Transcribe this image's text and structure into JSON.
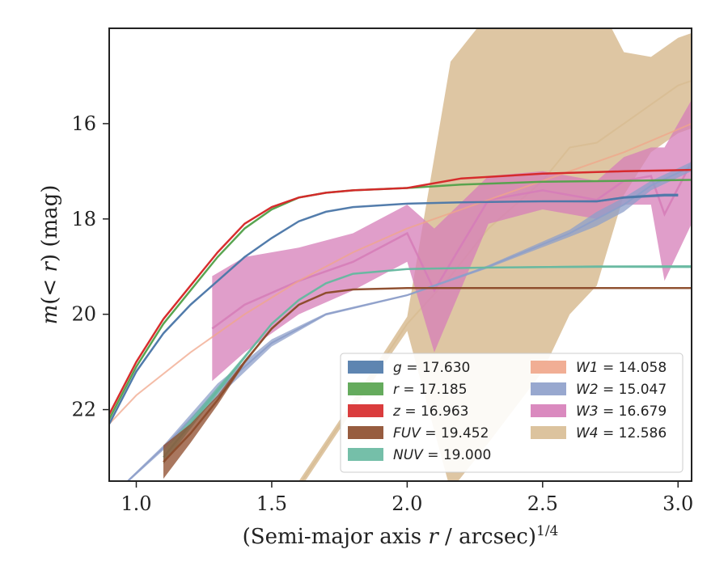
{
  "chart_data": {
    "type": "line",
    "title": "",
    "xlabel_main": "(Semi-major axis ",
    "xlabel_var": "r",
    "xlabel_tail": " / arcsec)",
    "xlabel_sup": "1/4",
    "ylabel_main": "m",
    "ylabel_paren": "(< ",
    "ylabel_var": "r",
    "ylabel_tail": ") (mag)",
    "xlim": [
      0.9,
      3.05
    ],
    "ylim": [
      23.5,
      14.0
    ],
    "y_inverted": true,
    "x_ticks": [
      1.0,
      1.5,
      2.0,
      2.5,
      3.0
    ],
    "x_tick_labels": [
      "1.0",
      "1.5",
      "2.0",
      "2.5",
      "3.0"
    ],
    "y_ticks": [
      16,
      18,
      20,
      22
    ],
    "y_tick_labels": [
      "16",
      "18",
      "20",
      "22"
    ],
    "grid": false,
    "legend_placement": "lower-right",
    "series": [
      {
        "name": "g",
        "legend_label": "g = 17.630",
        "color": "#4c78a8",
        "kind": "band",
        "x": [
          0.9,
          1.0,
          1.1,
          1.2,
          1.3,
          1.4,
          1.5,
          1.6,
          1.7,
          1.8,
          2.0,
          2.2,
          2.5,
          2.7,
          2.8,
          2.95,
          3.0
        ],
        "y": [
          22.3,
          21.2,
          20.4,
          19.8,
          19.3,
          18.8,
          18.4,
          18.05,
          17.85,
          17.75,
          17.68,
          17.65,
          17.63,
          17.63,
          17.55,
          17.5,
          17.5
        ],
        "width": [
          0.08,
          0.07,
          0.06,
          0.05,
          0.04,
          0.04,
          0.04,
          0.03,
          0.03,
          0.03,
          0.03,
          0.03,
          0.03,
          0.04,
          0.05,
          0.06,
          0.06
        ]
      },
      {
        "name": "r",
        "legend_label": "r = 17.185",
        "color": "#54a24b",
        "kind": "band",
        "x": [
          0.9,
          1.0,
          1.1,
          1.2,
          1.3,
          1.4,
          1.5,
          1.6,
          1.7,
          1.8,
          2.0,
          2.2,
          2.5,
          2.8,
          3.05
        ],
        "y": [
          22.2,
          21.1,
          20.2,
          19.5,
          18.8,
          18.2,
          17.8,
          17.55,
          17.45,
          17.4,
          17.35,
          17.28,
          17.22,
          17.2,
          17.18
        ],
        "width": [
          0.08,
          0.07,
          0.06,
          0.05,
          0.04,
          0.04,
          0.04,
          0.03,
          0.03,
          0.03,
          0.03,
          0.03,
          0.03,
          0.03,
          0.03
        ]
      },
      {
        "name": "z",
        "legend_label": "z = 16.963",
        "color": "#d62728",
        "kind": "band",
        "x": [
          0.9,
          1.0,
          1.1,
          1.2,
          1.3,
          1.4,
          1.5,
          1.6,
          1.7,
          1.8,
          2.0,
          2.2,
          2.5,
          2.8,
          3.05
        ],
        "y": [
          22.1,
          21.0,
          20.1,
          19.4,
          18.7,
          18.1,
          17.75,
          17.55,
          17.45,
          17.4,
          17.35,
          17.15,
          17.05,
          17.0,
          16.97
        ],
        "width": [
          0.08,
          0.07,
          0.06,
          0.05,
          0.04,
          0.04,
          0.04,
          0.03,
          0.03,
          0.03,
          0.03,
          0.03,
          0.03,
          0.03,
          0.03
        ]
      },
      {
        "name": "FUV",
        "legend_label": "FUV = 19.452",
        "color": "#8c4a2a",
        "kind": "band",
        "x": [
          1.1,
          1.2,
          1.3,
          1.4,
          1.5,
          1.6,
          1.7,
          1.8,
          2.0,
          2.3,
          2.6,
          3.05
        ],
        "y": [
          23.1,
          22.5,
          21.8,
          21.0,
          20.3,
          19.8,
          19.55,
          19.48,
          19.45,
          19.45,
          19.45,
          19.45
        ],
        "width": [
          0.7,
          0.4,
          0.2,
          0.08,
          0.05,
          0.04,
          0.03,
          0.03,
          0.03,
          0.03,
          0.03,
          0.03
        ]
      },
      {
        "name": "NUV",
        "legend_label": "NUV = 19.000",
        "color": "#66b8a0",
        "kind": "band",
        "x": [
          1.1,
          1.2,
          1.3,
          1.4,
          1.5,
          1.6,
          1.7,
          1.8,
          2.0,
          2.3,
          2.7,
          3.05
        ],
        "y": [
          23.0,
          22.3,
          21.6,
          20.9,
          20.2,
          19.7,
          19.35,
          19.15,
          19.05,
          19.02,
          19.0,
          19.0
        ],
        "width": [
          0.3,
          0.2,
          0.15,
          0.08,
          0.05,
          0.04,
          0.03,
          0.03,
          0.03,
          0.03,
          0.05,
          0.06
        ]
      },
      {
        "name": "W1",
        "legend_label": "W1 = 14.058",
        "color": "#f0a58a",
        "kind": "line",
        "x": [
          0.9,
          1.0,
          1.2,
          1.4,
          1.6,
          1.8,
          2.0,
          2.3,
          2.6,
          2.8,
          3.05
        ],
        "y": [
          22.3,
          21.7,
          20.8,
          20.0,
          19.3,
          18.7,
          18.2,
          17.6,
          17.0,
          16.6,
          16.0
        ],
        "width": [
          0.04,
          0.04,
          0.04,
          0.04,
          0.04,
          0.04,
          0.04,
          0.04,
          0.04,
          0.04,
          0.04
        ]
      },
      {
        "name": "W2",
        "legend_label": "W2 = 15.047",
        "color": "#8d9fca",
        "kind": "band",
        "x": [
          0.95,
          1.1,
          1.3,
          1.5,
          1.7,
          2.0,
          2.3,
          2.6,
          2.7,
          2.8,
          2.9,
          3.05
        ],
        "y": [
          23.6,
          22.8,
          21.6,
          20.6,
          20.0,
          19.6,
          19.0,
          18.3,
          18.0,
          17.7,
          17.3,
          16.9
        ],
        "width": [
          0.05,
          0.1,
          0.3,
          0.15,
          0.05,
          0.04,
          0.06,
          0.15,
          0.3,
          0.3,
          0.2,
          0.2
        ]
      },
      {
        "name": "W3",
        "legend_label": "W3 = 16.679",
        "color": "#d67db8",
        "kind": "band",
        "x": [
          1.28,
          1.4,
          1.6,
          1.8,
          2.0,
          2.1,
          2.3,
          2.5,
          2.7,
          2.8,
          2.9,
          2.95,
          3.05
        ],
        "y": [
          20.3,
          19.8,
          19.3,
          18.9,
          18.3,
          19.5,
          17.6,
          17.4,
          17.6,
          17.2,
          17.1,
          17.9,
          16.8
        ],
        "width": [
          2.2,
          2.0,
          1.4,
          1.2,
          1.2,
          2.6,
          1.0,
          0.8,
          0.8,
          1.0,
          1.2,
          2.8,
          2.6
        ]
      },
      {
        "name": "W4",
        "legend_label": "W4 = 12.586",
        "color": "#d8bc93",
        "kind": "band",
        "x": [
          1.6,
          1.8,
          2.0,
          2.16,
          2.3,
          2.5,
          2.6,
          2.7,
          2.8,
          2.9,
          3.0,
          3.05
        ],
        "y": [
          23.6,
          21.9,
          20.2,
          19.2,
          18.2,
          17.2,
          16.5,
          16.4,
          16.0,
          15.6,
          15.2,
          15.1
        ],
        "width": [
          0.2,
          0.2,
          0.3,
          9.0,
          9.0,
          8.0,
          7.0,
          6.0,
          3.0,
          2.0,
          2.0,
          2.0
        ]
      }
    ],
    "legend": {
      "columns": [
        [
          "g = 17.630",
          "r = 17.185",
          "z = 16.963",
          "FUV = 19.452",
          "NUV = 19.000"
        ],
        [
          "W1 = 14.058",
          "W2 = 15.047",
          "W3 = 16.679",
          "W4 = 12.586"
        ]
      ]
    }
  }
}
